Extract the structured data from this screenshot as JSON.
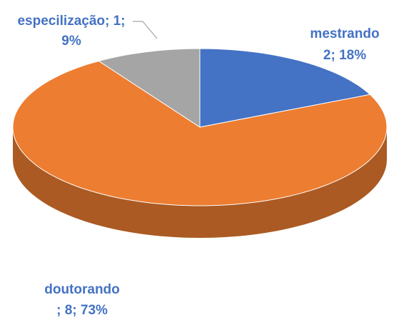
{
  "chart_data": {
    "type": "pie3d",
    "values": [
      2,
      8,
      1
    ],
    "value_labels": [
      [
        "mestrando",
        "2; 18%"
      ],
      [
        "doutorando",
        "; 8; 73%"
      ],
      [
        "especilização; 1;",
        "9%"
      ]
    ],
    "colors": [
      "#4472c4",
      "#ed7d31",
      "#a5a5a5"
    ]
  }
}
